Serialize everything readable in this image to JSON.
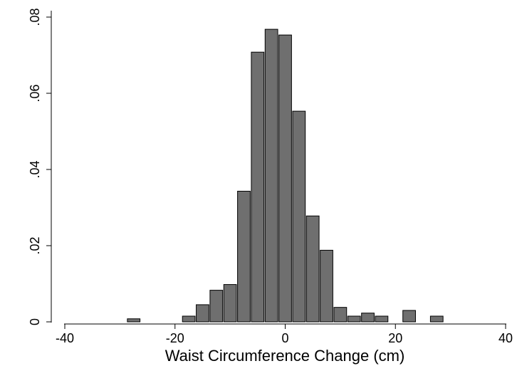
{
  "chart_data": {
    "type": "bar",
    "subtype": "histogram",
    "title": "",
    "xlabel": "Waist Circumference Change (cm)",
    "ylabel": "",
    "xlim": [
      -41.5,
      41.5
    ],
    "ylim": [
      0,
      0.08
    ],
    "x_ticks": [
      -40,
      -20,
      0,
      20,
      40
    ],
    "x_tick_labels": [
      "-40",
      "-20",
      "0",
      "20",
      "40"
    ],
    "y_ticks": [
      0,
      0.02,
      0.04,
      0.06,
      0.08
    ],
    "y_tick_labels": [
      "0",
      ".02",
      ".04",
      ".06",
      ".08"
    ],
    "bin_width": 2.5,
    "bins": [
      {
        "x": -27.5,
        "value": 0.0008
      },
      {
        "x": -17.5,
        "value": 0.0015
      },
      {
        "x": -15.0,
        "value": 0.0045
      },
      {
        "x": -12.5,
        "value": 0.0083
      },
      {
        "x": -10.0,
        "value": 0.0098
      },
      {
        "x": -7.5,
        "value": 0.0343
      },
      {
        "x": -5.0,
        "value": 0.0708
      },
      {
        "x": -2.5,
        "value": 0.0768
      },
      {
        "x": 0.0,
        "value": 0.0753
      },
      {
        "x": 2.5,
        "value": 0.0553
      },
      {
        "x": 5.0,
        "value": 0.0278
      },
      {
        "x": 7.5,
        "value": 0.0188
      },
      {
        "x": 10.0,
        "value": 0.0038
      },
      {
        "x": 12.5,
        "value": 0.0015
      },
      {
        "x": 15.0,
        "value": 0.0023
      },
      {
        "x": 17.5,
        "value": 0.0015
      },
      {
        "x": 22.5,
        "value": 0.003
      },
      {
        "x": 27.5,
        "value": 0.0015
      }
    ],
    "grid": false,
    "legend": "none",
    "colors": {
      "bar_fill": "#6f6f6f",
      "bar_edge": "#000000",
      "axis": "#000000"
    }
  }
}
